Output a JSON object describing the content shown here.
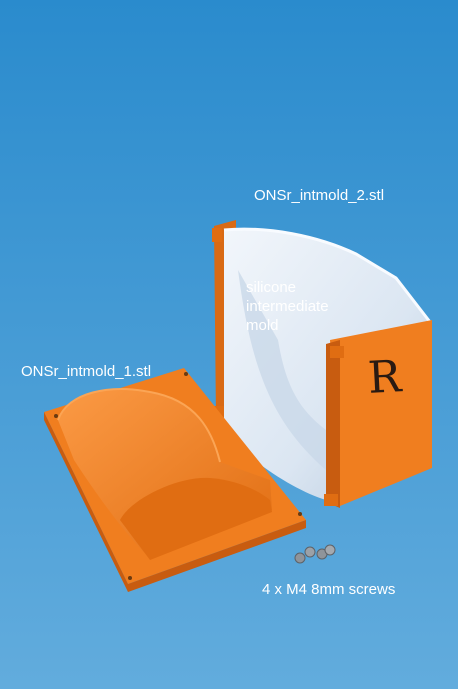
{
  "colors": {
    "background_top": "#2f8fd0",
    "background_bottom": "#5aa8dc",
    "orange": "#f07e1f",
    "orange_shadow": "#c85c10",
    "orange_light": "#fb9a45",
    "silicone": "#e4eef8",
    "silicone_shadow": "#b9cbe0",
    "screw": "#8f949a"
  },
  "labels": {
    "mold2": "ONSr_intmold_2.stl",
    "mold1": "ONSr_intmold_1.stl",
    "silicone": [
      "silicone",
      "intermediate",
      "mold"
    ],
    "screws": "4 x M4 8mm screws"
  },
  "box_marking": "R"
}
